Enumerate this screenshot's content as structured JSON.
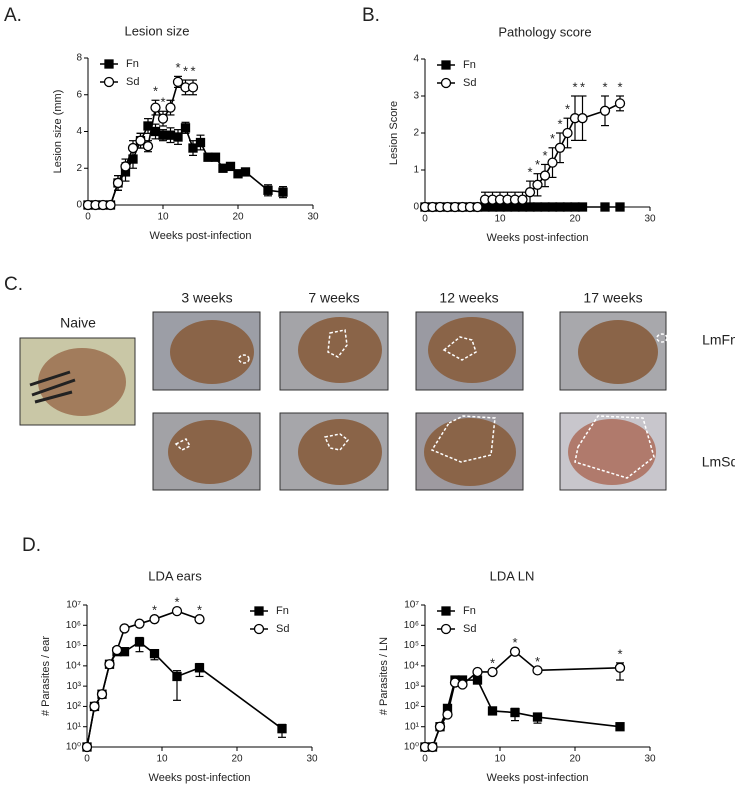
{
  "panel_labels": [
    "A.",
    "B.",
    "C.",
    "D."
  ],
  "photos": {
    "naive": "Naive",
    "timepoints": [
      "3 weeks",
      "7 weeks",
      "12 weeks",
      "17 weeks"
    ],
    "rows": [
      "LmFn",
      "LmSd"
    ]
  },
  "chart_data": [
    {
      "type": "line",
      "title": "Lesion size",
      "x_label": "Weeks post-infection",
      "y_label": "Lesion size (mm)",
      "xlim": [
        0,
        30
      ],
      "xticks": [
        0,
        10,
        20,
        30
      ],
      "ylim": [
        0,
        8
      ],
      "yticks": [
        0,
        2,
        4,
        6,
        8
      ],
      "legend": "upper left",
      "series": [
        {
          "name": "Fn",
          "color": "#000000",
          "marker": "square",
          "filled": true,
          "x": [
            0,
            1,
            2,
            3,
            4,
            5,
            6,
            7,
            8,
            9,
            10,
            11,
            12,
            13,
            14,
            15,
            16,
            17,
            18,
            19,
            20,
            21,
            24,
            26
          ],
          "values": [
            0,
            0,
            0,
            0,
            1.2,
            1.8,
            2.5,
            3.5,
            4.3,
            4.0,
            3.8,
            3.8,
            3.7,
            4.2,
            3.1,
            3.4,
            2.6,
            2.6,
            2.0,
            2.1,
            1.7,
            1.8,
            0.8,
            0.7
          ],
          "errors": [
            0,
            0,
            0,
            0,
            0.4,
            0.5,
            0.5,
            0.4,
            0.4,
            0.4,
            0.3,
            0.4,
            0.4,
            0.3,
            0.4,
            0.4,
            0.2,
            0.2,
            0.2,
            0.2,
            0.2,
            0.2,
            0.3,
            0.3
          ]
        },
        {
          "name": "Sd",
          "color": "#000000",
          "marker": "circle",
          "filled": false,
          "x": [
            0,
            1,
            2,
            3,
            4,
            5,
            6,
            7,
            8,
            9,
            10,
            11,
            12,
            13,
            14
          ],
          "values": [
            0,
            0,
            0,
            0,
            1.2,
            2.1,
            3.1,
            3.5,
            3.2,
            5.3,
            4.7,
            5.3,
            6.7,
            6.4,
            6.4
          ],
          "errors": [
            0,
            0,
            0,
            0,
            0.4,
            0.4,
            0.4,
            0.4,
            0.3,
            0.4,
            0.4,
            0.4,
            0.3,
            0.4,
            0.4
          ]
        }
      ],
      "annotations": [
        {
          "x": 9,
          "text": "*"
        },
        {
          "x": 10,
          "text": "*"
        },
        {
          "x": 12,
          "text": "*"
        },
        {
          "x": 13,
          "text": "*"
        },
        {
          "x": 14,
          "text": "*"
        }
      ]
    },
    {
      "type": "line",
      "title": "Pathology score",
      "x_label": "Weeks post-infection",
      "y_label": "Lesion Score",
      "xlim": [
        0,
        30
      ],
      "xticks": [
        0,
        10,
        20,
        30
      ],
      "ylim": [
        0,
        4
      ],
      "yticks": [
        0,
        1,
        2,
        3,
        4
      ],
      "legend": "upper left",
      "series": [
        {
          "name": "Fn",
          "color": "#000000",
          "marker": "square",
          "filled": true,
          "x": [
            0,
            1,
            2,
            3,
            4,
            5,
            6,
            7,
            8,
            9,
            10,
            11,
            12,
            13,
            14,
            15,
            16,
            17,
            18,
            19,
            20,
            21,
            24,
            26
          ],
          "values": [
            0,
            0,
            0,
            0,
            0,
            0,
            0,
            0,
            0,
            0,
            0,
            0,
            0,
            0,
            0,
            0,
            0,
            0,
            0,
            0,
            0,
            0,
            0,
            0
          ]
        },
        {
          "name": "Sd",
          "color": "#000000",
          "marker": "circle",
          "filled": false,
          "x": [
            0,
            1,
            2,
            3,
            4,
            5,
            6,
            7,
            8,
            9,
            10,
            11,
            12,
            13,
            14,
            15,
            16,
            17,
            18,
            19,
            20,
            21,
            24,
            26
          ],
          "values": [
            0,
            0,
            0,
            0,
            0,
            0,
            0,
            0,
            0.2,
            0.2,
            0.2,
            0.2,
            0.2,
            0.2,
            0.4,
            0.6,
            0.85,
            1.2,
            1.6,
            2.0,
            2.4,
            2.4,
            2.6,
            2.8
          ],
          "errors": [
            0,
            0,
            0,
            0,
            0,
            0,
            0,
            0,
            0.2,
            0.2,
            0.2,
            0.2,
            0.2,
            0.2,
            0.3,
            0.3,
            0.3,
            0.4,
            0.4,
            0.4,
            0.6,
            0.6,
            0.4,
            0.2
          ]
        }
      ],
      "annotations": [
        {
          "x": 14,
          "text": "*"
        },
        {
          "x": 15,
          "text": "*"
        },
        {
          "x": 16,
          "text": "*"
        },
        {
          "x": 17,
          "text": "*"
        },
        {
          "x": 18,
          "text": "*"
        },
        {
          "x": 19,
          "text": "*"
        },
        {
          "x": 20,
          "text": "*"
        },
        {
          "x": 21,
          "text": "*"
        },
        {
          "x": 24,
          "text": "*"
        },
        {
          "x": 26,
          "text": "*"
        }
      ]
    },
    {
      "type": "line",
      "title": "LDA ears",
      "x_label": "Weeks post-infection",
      "y_label": "# Parasites / ear",
      "log_y": true,
      "xlim": [
        0,
        30
      ],
      "xticks": [
        0,
        10,
        20,
        30
      ],
      "ylim": [
        1,
        10000000
      ],
      "yticks": [
        {
          "value": 1,
          "label": "10⁰"
        },
        {
          "value": 10,
          "label": "10¹"
        },
        {
          "value": 100,
          "label": "10²"
        },
        {
          "value": 1000,
          "label": "10³"
        },
        {
          "value": 10000,
          "label": "10⁴"
        },
        {
          "value": 100000,
          "label": "10⁵"
        },
        {
          "value": 1000000,
          "label": "10⁶"
        },
        {
          "value": 10000000,
          "label": "10⁷"
        }
      ],
      "legend": "upper right",
      "series": [
        {
          "name": "Fn",
          "color": "#000000",
          "marker": "square",
          "filled": true,
          "x": [
            0,
            1,
            2,
            3,
            4,
            5,
            7,
            9,
            12,
            15,
            26
          ],
          "values": [
            1,
            100,
            400,
            12000,
            50000,
            50000,
            150000,
            40000,
            3000,
            8000,
            8
          ],
          "errors": [
            0,
            0,
            0,
            0,
            0,
            0,
            100000,
            20000,
            2800,
            5000,
            5
          ]
        },
        {
          "name": "Sd",
          "color": "#000000",
          "marker": "circle",
          "filled": false,
          "x": [
            0,
            1,
            2,
            3,
            4,
            5,
            7,
            9,
            12,
            15
          ],
          "values": [
            1,
            100,
            400,
            12000,
            60000,
            700000,
            1200000,
            2000000,
            5000000,
            2000000
          ]
        }
      ],
      "annotations": [
        {
          "x": 9,
          "text": "*"
        },
        {
          "x": 12,
          "text": "*"
        },
        {
          "x": 15,
          "text": "*"
        }
      ]
    },
    {
      "type": "line",
      "title": "LDA LN",
      "x_label": "Weeks post-infection",
      "y_label": "# Parasites / LN",
      "log_y": true,
      "xlim": [
        0,
        30
      ],
      "xticks": [
        0,
        10,
        20,
        30
      ],
      "ylim": [
        1,
        10000000
      ],
      "yticks": [
        {
          "value": 1,
          "label": "10⁰"
        },
        {
          "value": 10,
          "label": "10¹"
        },
        {
          "value": 100,
          "label": "10²"
        },
        {
          "value": 1000,
          "label": "10³"
        },
        {
          "value": 10000,
          "label": "10⁴"
        },
        {
          "value": 100000,
          "label": "10⁵"
        },
        {
          "value": 1000000,
          "label": "10⁶"
        },
        {
          "value": 10000000,
          "label": "10⁷"
        }
      ],
      "legend": "upper left",
      "series": [
        {
          "name": "Fn",
          "color": "#000000",
          "marker": "square",
          "filled": true,
          "x": [
            0,
            1,
            2,
            3,
            4,
            5,
            7,
            9,
            12,
            15,
            26
          ],
          "values": [
            1,
            1,
            10,
            80,
            2000,
            2000,
            2000,
            60,
            50,
            30,
            10
          ],
          "errors": [
            0,
            0,
            0,
            0,
            0,
            0,
            0,
            0,
            30,
            15,
            0
          ]
        },
        {
          "name": "Sd",
          "color": "#000000",
          "marker": "circle",
          "filled": false,
          "x": [
            0,
            1,
            2,
            3,
            4,
            5,
            7,
            9,
            12,
            15,
            26
          ],
          "values": [
            1,
            1,
            10,
            40,
            1500,
            1200,
            5000,
            5000,
            50000,
            6000,
            8000
          ],
          "errors": [
            0,
            0,
            0,
            0,
            0,
            0,
            0,
            0,
            0,
            0,
            6000
          ]
        }
      ],
      "annotations": [
        {
          "x": 9,
          "text": "*"
        },
        {
          "x": 12,
          "text": "*"
        },
        {
          "x": 15,
          "text": "*"
        },
        {
          "x": 26,
          "text": "*"
        }
      ]
    }
  ]
}
